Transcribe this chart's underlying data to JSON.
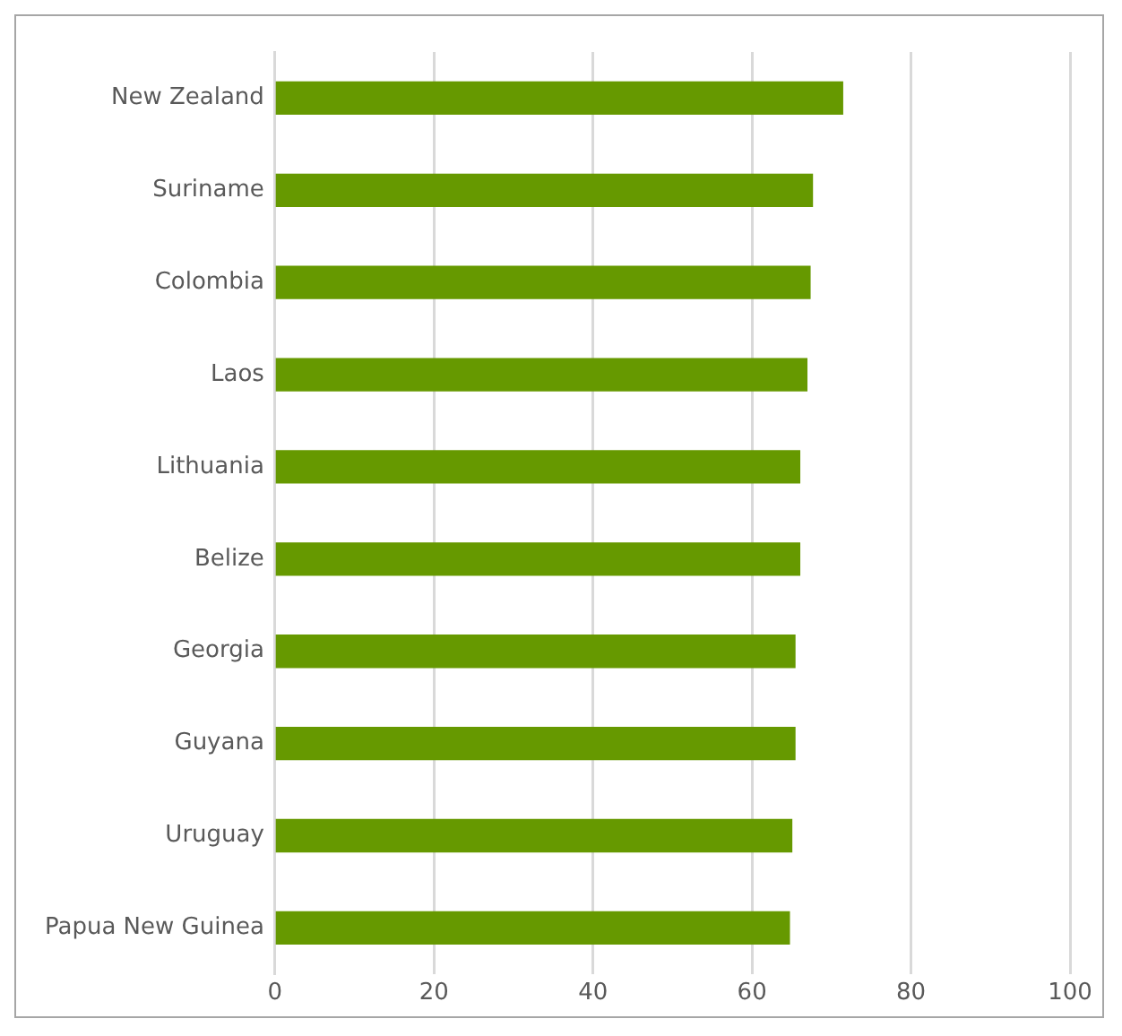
{
  "chart_data": {
    "type": "bar",
    "orientation": "horizontal",
    "categories": [
      "New Zealand",
      "Suriname",
      "Colombia",
      "Laos",
      "Lithuania",
      "Belize",
      "Georgia",
      "Guyana",
      "Uruguay",
      "Papua New Guinea"
    ],
    "values": [
      71.4,
      67.6,
      67.3,
      66.9,
      66.0,
      66.0,
      65.4,
      65.4,
      65.0,
      64.7
    ],
    "color": "#669900",
    "xlim": [
      0,
      100
    ],
    "xticks": [
      0,
      20,
      40,
      60,
      80,
      100
    ],
    "grid": "x",
    "legend": false
  }
}
